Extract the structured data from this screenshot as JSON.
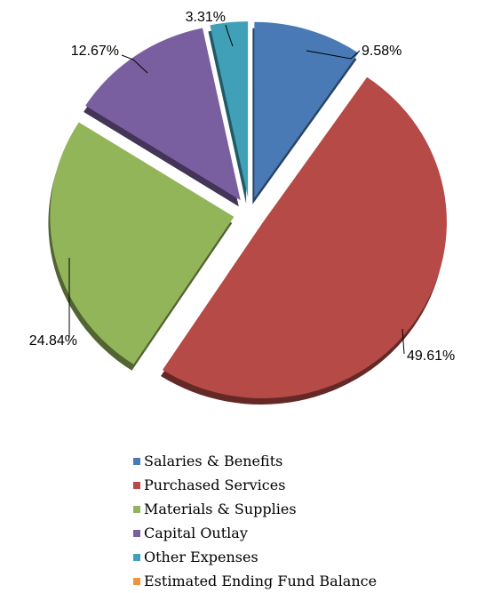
{
  "chart_data": {
    "type": "pie",
    "title": "",
    "series": [
      {
        "name": "Salaries & Benefits",
        "value": 9.58,
        "label": "9.58%",
        "color": "#4a7ab5"
      },
      {
        "name": "Purchased Services",
        "value": 49.61,
        "label": "49.61%",
        "color": "#b64a47"
      },
      {
        "name": "Materials & Supplies",
        "value": 24.84,
        "label": "24.84%",
        "color": "#93b55a"
      },
      {
        "name": "Capital Outlay",
        "value": 12.67,
        "label": "12.67%",
        "color": "#7a5fa0"
      },
      {
        "name": "Other Expenses",
        "value": 3.31,
        "label": "3.31%",
        "color": "#3fa0b8"
      },
      {
        "name": "Estimated Ending Fund Balance",
        "value": 0,
        "label": "",
        "color": "#f2923e"
      }
    ],
    "legend_position": "bottom",
    "exploded": true
  }
}
